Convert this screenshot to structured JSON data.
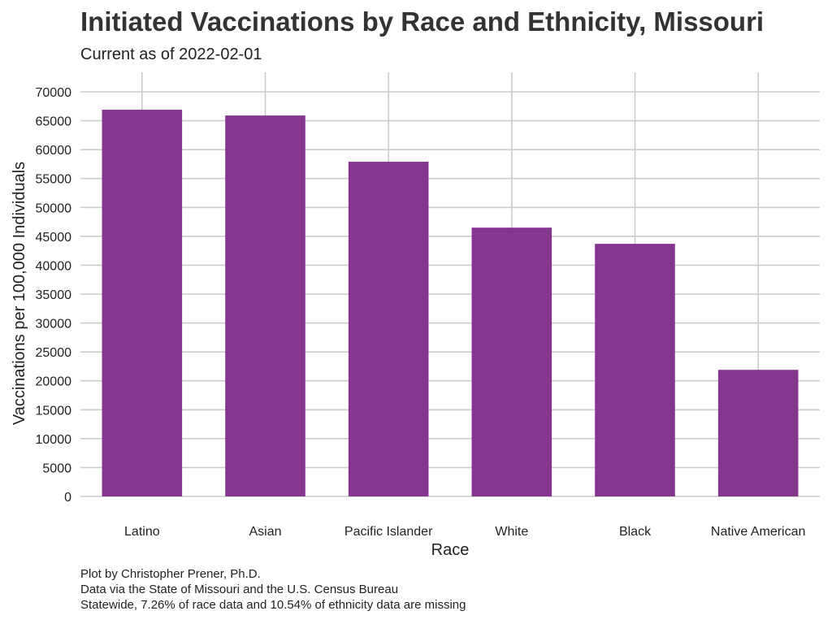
{
  "chart_data": {
    "type": "bar",
    "title": "Initiated Vaccinations by Race and Ethnicity, Missouri",
    "subtitle": "Current as of 2022-02-01",
    "xlabel": "Race",
    "ylabel": "Vaccinations per 100,000 Individuals",
    "categories": [
      "Latino",
      "Asian",
      "Pacific Islander",
      "White",
      "Black",
      "Native American"
    ],
    "values": [
      66900,
      65900,
      57900,
      46500,
      43700,
      21900
    ],
    "ylim": [
      0,
      70000
    ],
    "yticks": [
      0,
      5000,
      10000,
      15000,
      20000,
      25000,
      30000,
      35000,
      40000,
      45000,
      50000,
      55000,
      60000,
      65000,
      70000
    ],
    "bar_color": "#84368f",
    "grid": true,
    "legend": "none",
    "caption": [
      "Plot by Christopher Prener, Ph.D.",
      "Data via the State of Missouri and the U.S. Census Bureau",
      "Statewide, 7.26% of race data and 10.54% of ethnicity data are missing"
    ]
  }
}
